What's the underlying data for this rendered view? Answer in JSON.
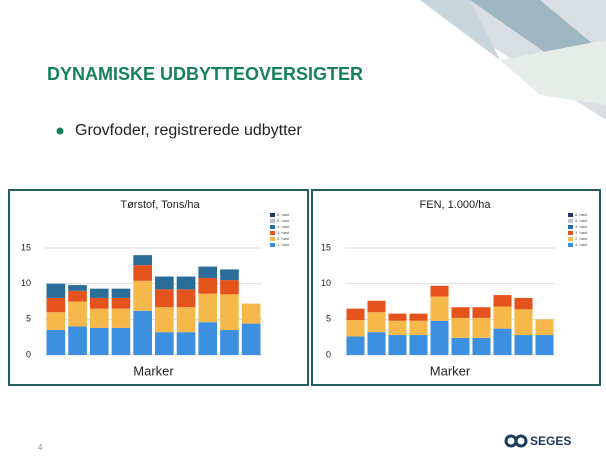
{
  "slide": {
    "title": "DYNAMISKE UDBYTTEOVERSIGTER",
    "bullet": "Grovfoder, registrerede udbytter",
    "page_number": "4",
    "logo": "SEGES"
  },
  "chart_data": [
    {
      "type": "stacked_bar",
      "title": "Tørstof, Tons/ha",
      "x_label": "Marker",
      "categories": [
        null,
        null,
        null,
        null,
        null,
        null,
        null,
        null,
        null,
        null
      ],
      "ylim": [
        0,
        15
      ],
      "yticks": [
        0,
        5,
        10,
        15
      ],
      "grid": true,
      "legend": "upper right",
      "series": [
        {
          "name": "1. høst",
          "color": "#3d8fe0",
          "values": [
            3.5,
            4.0,
            3.8,
            3.8,
            6.2,
            3.2,
            3.2,
            4.6,
            3.5,
            4.4
          ]
        },
        {
          "name": "2. høst",
          "color": "#f7b84b",
          "values": [
            2.5,
            3.5,
            2.7,
            2.7,
            4.2,
            3.5,
            3.5,
            4.0,
            5.0,
            2.8
          ]
        },
        {
          "name": "3. høst",
          "color": "#e5531c",
          "values": [
            2.0,
            1.5,
            1.5,
            1.5,
            2.2,
            2.5,
            2.5,
            2.2,
            2.0,
            0
          ]
        },
        {
          "name": "4. høst",
          "color": "#2a6d99",
          "values": [
            2.0,
            0.8,
            1.3,
            1.3,
            1.4,
            1.8,
            1.8,
            1.6,
            1.5,
            0
          ]
        },
        {
          "name": "5. høst",
          "color": "#b9c4cf",
          "values": [
            0,
            0,
            0,
            0,
            0,
            0,
            0,
            0,
            0,
            0
          ]
        },
        {
          "name": "6. høst",
          "color": "#1c3a66",
          "values": [
            0,
            0,
            0,
            0,
            0,
            0,
            0,
            0,
            0,
            0
          ]
        }
      ]
    },
    {
      "type": "stacked_bar",
      "title": "FEN, 1.000/ha",
      "x_label": "Marker",
      "categories": [
        null,
        null,
        null,
        null,
        null,
        null,
        null,
        null,
        null,
        null
      ],
      "ylim": [
        0,
        15
      ],
      "yticks": [
        0,
        5,
        10,
        15
      ],
      "grid": true,
      "legend": "upper right",
      "series": [
        {
          "name": "1. høst",
          "color": "#3d8fe0",
          "values": [
            2.6,
            3.2,
            2.8,
            2.8,
            4.8,
            2.4,
            2.4,
            3.7,
            2.8,
            2.8
          ]
        },
        {
          "name": "2. høst",
          "color": "#f7b84b",
          "values": [
            2.3,
            2.8,
            2.0,
            2.0,
            3.4,
            2.8,
            2.8,
            3.1,
            3.6,
            2.2
          ]
        },
        {
          "name": "3. høst",
          "color": "#e5531c",
          "values": [
            1.6,
            1.6,
            1.0,
            1.0,
            1.5,
            1.5,
            1.5,
            1.6,
            1.6,
            0
          ]
        },
        {
          "name": "4. høst",
          "color": "#2a6d99",
          "values": [
            0,
            0,
            0,
            0,
            0,
            0,
            0,
            0,
            0,
            0
          ]
        },
        {
          "name": "5. høst",
          "color": "#b9c4cf",
          "values": [
            0,
            0,
            0,
            0,
            0,
            0,
            0,
            0,
            0,
            0
          ]
        },
        {
          "name": "6. høst",
          "color": "#1c3a66",
          "values": [
            0,
            0,
            0,
            0,
            0,
            0,
            0,
            0,
            0,
            0
          ]
        }
      ]
    }
  ]
}
